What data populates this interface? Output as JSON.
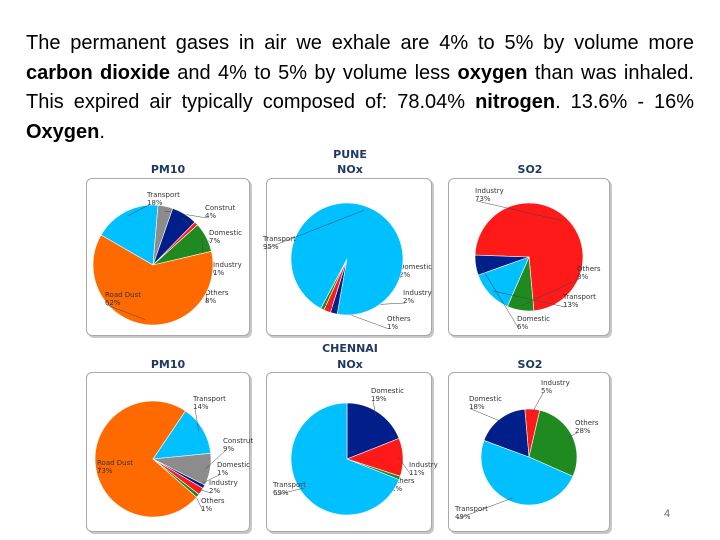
{
  "intro": {
    "p1": "The permanent gases in air we exhale are 4% to 5% by volume more ",
    "b1": "carbon dioxide",
    "p2": " and 4% to 5% by volume less ",
    "b2": "oxygen",
    "p3": " than was inhaled. This expired air typically composed of: 78.04% ",
    "b3": "nitrogen",
    "p4": ". 13.6% - 16% ",
    "b4": "Oxygen",
    "p5": "."
  },
  "cities": {
    "pune": "PUNE",
    "chennai": "CHENNAI"
  },
  "titles": {
    "pune_pm10": "PM10",
    "pune_nox": "NOx",
    "pune_so2": "SO2",
    "chennai_pm10": "PM10",
    "chennai_nox": "NOx",
    "chennai_so2": "SO2"
  },
  "page_number": "4",
  "colors": {
    "road_dust": "#ff6a00",
    "transport": "#00c0ff",
    "construction": "#8c8c8c",
    "domestic": "#001f8a",
    "industry": "#ff1a1a",
    "others": "#1f8a1f"
  },
  "chart_data": [
    {
      "type": "pie",
      "title": "PM10",
      "group": "PUNE",
      "start_category": "Transport",
      "slices": [
        {
          "label": "Transport",
          "pct": "18%",
          "value": 18,
          "color": "#00c0ff"
        },
        {
          "label": "Construt",
          "pct": "4%",
          "value": 4,
          "color": "#8c8c8c"
        },
        {
          "label": "Domestic",
          "pct": "7%",
          "value": 7,
          "color": "#001f8a"
        },
        {
          "label": "Industry",
          "pct": "1%",
          "value": 1,
          "color": "#ff1a1a"
        },
        {
          "label": "Others",
          "pct": "8%",
          "value": 8,
          "color": "#1f8a1f"
        },
        {
          "label": "Road Dust",
          "pct": "62%",
          "value": 62,
          "color": "#ff6a00"
        }
      ]
    },
    {
      "type": "pie",
      "title": "NOx",
      "group": "PUNE",
      "start_category": "Domestic",
      "slices": [
        {
          "label": "Domestic",
          "pct": "2%",
          "value": 2,
          "color": "#001f8a"
        },
        {
          "label": "Industry",
          "pct": "2%",
          "value": 2,
          "color": "#ff1a1a"
        },
        {
          "label": "Others",
          "pct": "1%",
          "value": 1,
          "color": "#1f8a1f"
        },
        {
          "label": "Transport",
          "pct": "95%",
          "value": 95,
          "color": "#00c0ff"
        }
      ]
    },
    {
      "type": "pie",
      "title": "SO2",
      "group": "PUNE",
      "start_category": "Industry",
      "slices": [
        {
          "label": "Industry",
          "pct": "73%",
          "value": 73,
          "color": "#ff1a1a"
        },
        {
          "label": "Others",
          "pct": "8%",
          "value": 8,
          "color": "#1f8a1f"
        },
        {
          "label": "Transport",
          "pct": "13%",
          "value": 13,
          "color": "#00c0ff"
        },
        {
          "label": "Domestic",
          "pct": "6%",
          "value": 6,
          "color": "#001f8a"
        }
      ]
    },
    {
      "type": "pie",
      "title": "PM10",
      "group": "CHENNAI",
      "start_category": "Transport",
      "slices": [
        {
          "label": "Transport",
          "pct": "14%",
          "value": 14,
          "color": "#00c0ff"
        },
        {
          "label": "Construt",
          "pct": "9%",
          "value": 9,
          "color": "#8c8c8c"
        },
        {
          "label": "Domestic",
          "pct": "1%",
          "value": 1,
          "color": "#001f8a"
        },
        {
          "label": "Industry",
          "pct": "2%",
          "value": 2,
          "color": "#ff1a1a"
        },
        {
          "label": "Others",
          "pct": "1%",
          "value": 1,
          "color": "#1f8a1f"
        },
        {
          "label": "Road Dust",
          "pct": "73%",
          "value": 73,
          "color": "#ff6a00"
        }
      ]
    },
    {
      "type": "pie",
      "title": "NOx",
      "group": "CHENNAI",
      "start_category": "Domestic",
      "slices": [
        {
          "label": "Domestic",
          "pct": "19%",
          "value": 19,
          "color": "#001f8a"
        },
        {
          "label": "Industry",
          "pct": "11%",
          "value": 11,
          "color": "#ff1a1a"
        },
        {
          "label": "Others",
          "pct": "1%",
          "value": 1,
          "color": "#1f8a1f"
        },
        {
          "label": "Transport",
          "pct": "69%",
          "value": 69,
          "color": "#00c0ff"
        }
      ]
    },
    {
      "type": "pie",
      "title": "SO2",
      "group": "CHENNAI",
      "start_category": "Industry",
      "slices": [
        {
          "label": "Industry",
          "pct": "5%",
          "value": 5,
          "color": "#ff1a1a"
        },
        {
          "label": "Others",
          "pct": "28%",
          "value": 28,
          "color": "#1f8a1f"
        },
        {
          "label": "Transport",
          "pct": "49%",
          "value": 49,
          "color": "#00c0ff"
        },
        {
          "label": "Domestic",
          "pct": "18%",
          "value": 18,
          "color": "#001f8a"
        }
      ]
    }
  ]
}
